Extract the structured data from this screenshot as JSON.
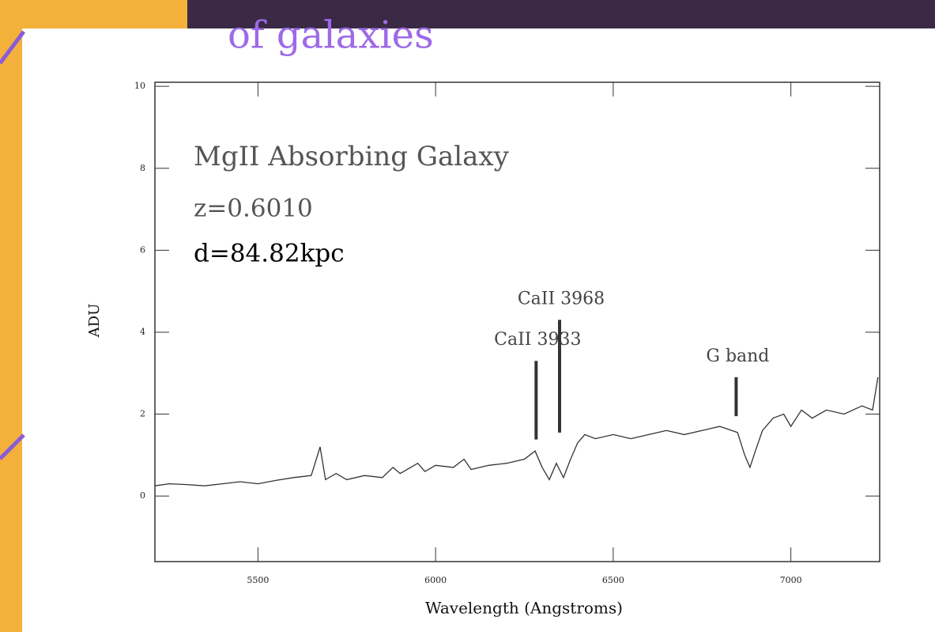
{
  "chart_data": {
    "type": "line",
    "title": "of galaxies",
    "notes": [
      "MgII Absorbing Galaxy",
      "z=0.6010",
      "d=84.82kpc"
    ],
    "x_label": "Wavelength (Angstroms)",
    "y_label": "ADU",
    "x": [
      5210,
      5250,
      5300,
      5350,
      5400,
      5450,
      5500,
      5550,
      5600,
      5650,
      5675,
      5690,
      5720,
      5750,
      5800,
      5850,
      5880,
      5900,
      5950,
      5970,
      6000,
      6050,
      6080,
      6100,
      6150,
      6200,
      6250,
      6280,
      6300,
      6320,
      6340,
      6360,
      6380,
      6400,
      6420,
      6450,
      6500,
      6550,
      6600,
      6650,
      6700,
      6750,
      6800,
      6850,
      6870,
      6885,
      6900,
      6920,
      6950,
      6980,
      7000,
      7030,
      7060,
      7100,
      7150,
      7200,
      7230,
      7245
    ],
    "values": [
      0.25,
      0.3,
      0.28,
      0.25,
      0.3,
      0.35,
      0.3,
      0.38,
      0.45,
      0.5,
      1.2,
      0.4,
      0.55,
      0.4,
      0.5,
      0.45,
      0.7,
      0.55,
      0.8,
      0.6,
      0.75,
      0.7,
      0.9,
      0.65,
      0.75,
      0.8,
      0.9,
      1.1,
      0.7,
      0.4,
      0.8,
      0.45,
      0.9,
      1.3,
      1.5,
      1.4,
      1.5,
      1.4,
      1.5,
      1.6,
      1.5,
      1.6,
      1.7,
      1.55,
      1.0,
      0.7,
      1.1,
      1.6,
      1.9,
      2.0,
      1.7,
      2.1,
      1.9,
      2.1,
      2.0,
      2.2,
      2.1,
      2.9
    ],
    "color": "#333333",
    "xlim": [
      5210,
      7250
    ],
    "ylim": [
      -1.6,
      10.1
    ],
    "xticks": [
      5500,
      6000,
      6500,
      7000
    ],
    "yticks": [
      0,
      2,
      4,
      6,
      8,
      10
    ],
    "annotations": [
      {
        "text": "CaII 3933",
        "x": 6283,
        "y": [
          1.38,
          3.3
        ]
      },
      {
        "text": "CaII 3968",
        "x": 6349,
        "y": [
          1.55,
          4.3
        ]
      },
      {
        "text": "G band",
        "x": 6846,
        "y": [
          1.95,
          2.9
        ]
      }
    ]
  }
}
